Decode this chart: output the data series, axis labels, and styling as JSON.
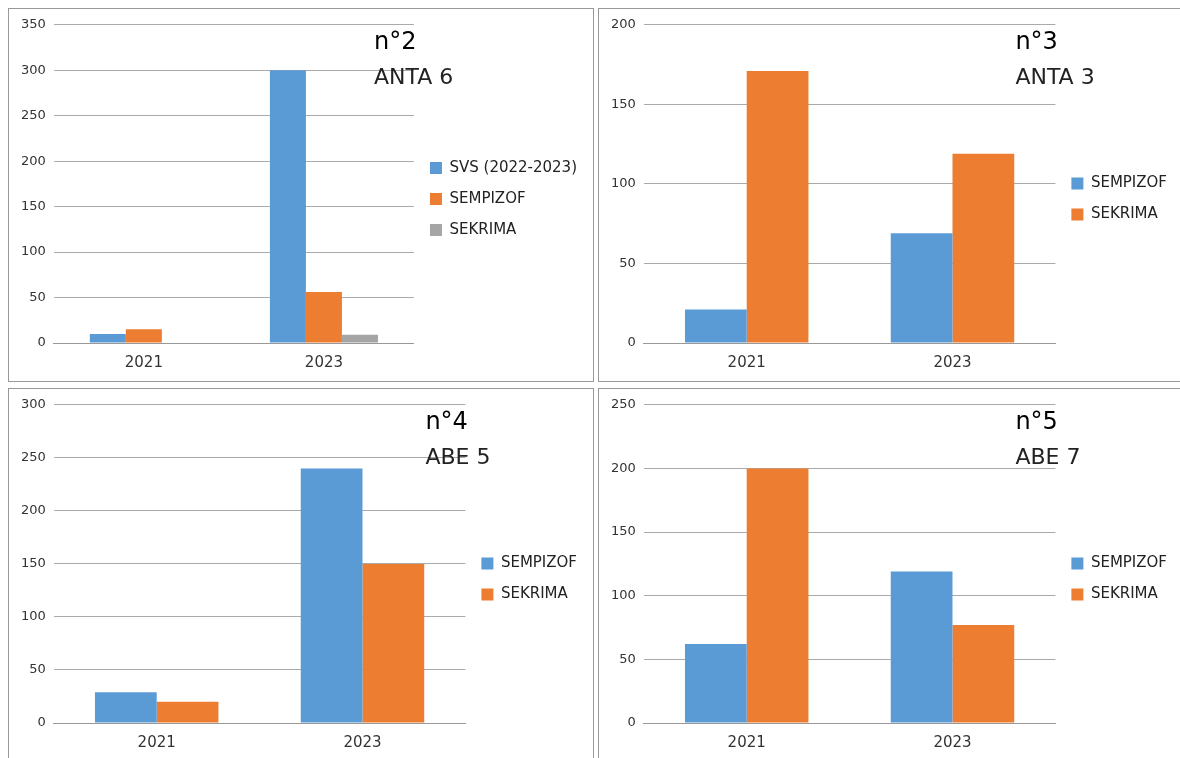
{
  "chart_data": [
    {
      "type": "bar",
      "title": "n°2",
      "subtitle": "ANTA 6",
      "categories": [
        "2021",
        "2023"
      ],
      "series": [
        {
          "name": "SVS (2022-2023)",
          "color": "#5b9bd5",
          "values": [
            10,
            300
          ]
        },
        {
          "name": "SEMPIZOF",
          "color": "#ed7d31",
          "values": [
            15,
            56
          ]
        },
        {
          "name": "SEKRIMA",
          "color": "#a5a5a5",
          "values": [
            null,
            9
          ]
        }
      ],
      "ylim": [
        0,
        350
      ],
      "yticks": [
        0,
        50,
        100,
        150,
        200,
        250,
        300,
        350
      ],
      "grid": "y",
      "legend": "right"
    },
    {
      "type": "bar",
      "title": "n°3",
      "subtitle": "ANTA 3",
      "categories": [
        "2021",
        "2023"
      ],
      "series": [
        {
          "name": "SEMPIZOF",
          "color": "#5b9bd5",
          "values": [
            21,
            69
          ]
        },
        {
          "name": "SEKRIMA",
          "color": "#ed7d31",
          "values": [
            171,
            119
          ]
        }
      ],
      "ylim": [
        0,
        200
      ],
      "yticks": [
        0,
        50,
        100,
        150,
        200
      ],
      "grid": "y",
      "legend": "right"
    },
    {
      "type": "bar",
      "title": "n°4",
      "subtitle": "ABE 5",
      "categories": [
        "2021",
        "2023"
      ],
      "series": [
        {
          "name": "SEMPIZOF",
          "color": "#5b9bd5",
          "values": [
            29,
            240
          ]
        },
        {
          "name": "SEKRIMA",
          "color": "#ed7d31",
          "values": [
            20,
            150
          ]
        }
      ],
      "ylim": [
        0,
        300
      ],
      "yticks": [
        0,
        50,
        100,
        150,
        200,
        250,
        300
      ],
      "grid": "y",
      "legend": "right"
    },
    {
      "type": "bar",
      "title": "n°5",
      "subtitle": "ABE 7",
      "categories": [
        "2021",
        "2023"
      ],
      "series": [
        {
          "name": "SEMPIZOF",
          "color": "#5b9bd5",
          "values": [
            62,
            119
          ]
        },
        {
          "name": "SEKRIMA",
          "color": "#ed7d31",
          "values": [
            200,
            77
          ]
        }
      ],
      "ylim": [
        0,
        250
      ],
      "yticks": [
        0,
        50,
        100,
        150,
        200,
        250
      ],
      "grid": "y",
      "legend": "right"
    }
  ]
}
